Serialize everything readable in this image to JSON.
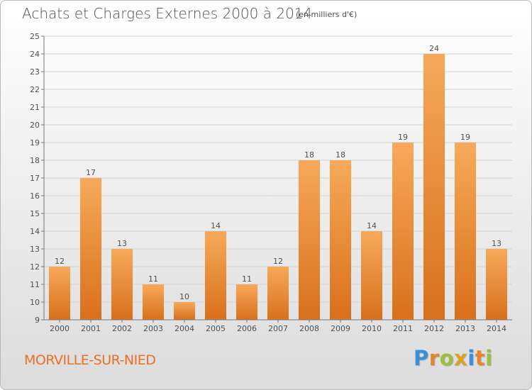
{
  "header": {
    "title": "Achats et Charges Externes 2000 à 2014",
    "unit": "(en milliers d'€)"
  },
  "commune": "MORVILLE-SUR-NIED",
  "logo": {
    "text": "Proxiti",
    "letters": [
      {
        "ch": "P",
        "color": "#3a8fd6"
      },
      {
        "ch": "r",
        "color": "#e8842a"
      },
      {
        "ch": "o",
        "color": "#9ac13a"
      },
      {
        "ch": "x",
        "color": "#e0a020"
      },
      {
        "ch": "i",
        "color": "#3a8fd6"
      },
      {
        "ch": "t",
        "color": "#e8842a"
      },
      {
        "ch": "i",
        "color": "#9ac13a"
      }
    ]
  },
  "colors": {
    "bar_light": "#f7a95a",
    "bar_dark": "#d8701c",
    "grid": "#d2d2d2",
    "text": "#505050",
    "accent": "#e8702a"
  },
  "chart_data": {
    "type": "bar",
    "categories": [
      "2000",
      "2001",
      "2002",
      "2003",
      "2004",
      "2005",
      "2006",
      "2007",
      "2008",
      "2009",
      "2010",
      "2011",
      "2012",
      "2013",
      "2014"
    ],
    "values": [
      12,
      17,
      13,
      11,
      10,
      14,
      11,
      12,
      18,
      18,
      14,
      19,
      24,
      19,
      13
    ],
    "ylim": [
      9,
      25
    ],
    "yticks": [
      9,
      10,
      11,
      12,
      13,
      14,
      15,
      16,
      17,
      18,
      19,
      20,
      21,
      22,
      23,
      24,
      25
    ],
    "grid": true,
    "title": "Achats et Charges Externes 2000 à 2014",
    "xlabel": "",
    "ylabel": ""
  }
}
